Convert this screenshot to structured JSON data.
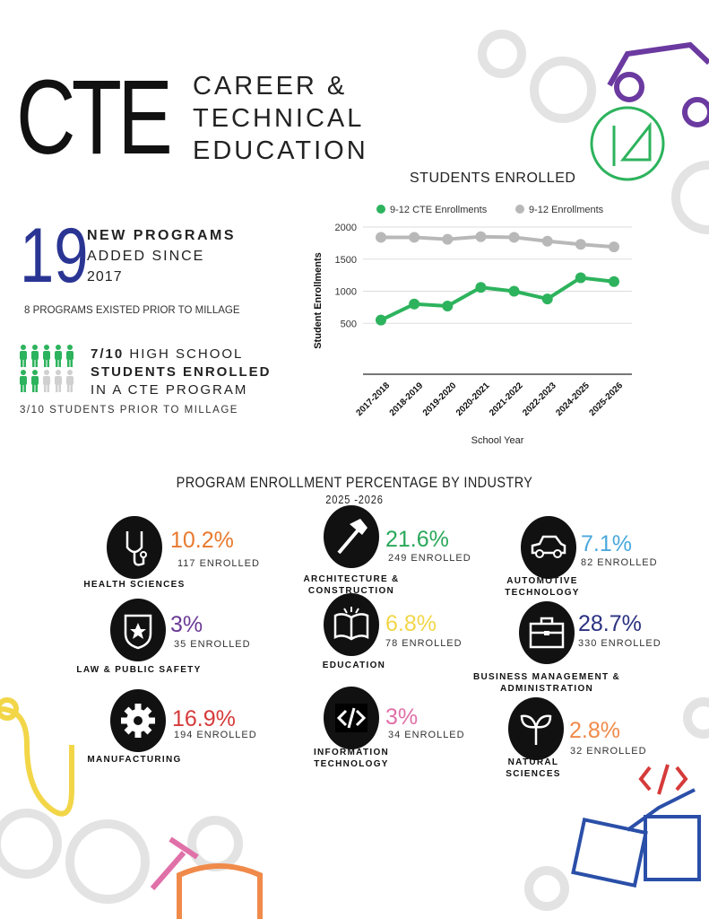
{
  "header": {
    "logo": "CTE",
    "line1": "CAREER &",
    "line2": "TECHNICAL",
    "line3": "EDUCATION"
  },
  "stats": {
    "programs_number": "19",
    "programs_line1": "NEW PROGRAMS",
    "programs_line2": "ADDED SINCE",
    "programs_line3": "2017",
    "programs_note": "8 PROGRAMS EXISTED PRIOR TO MILLAGE",
    "students_line1_bold": "7/10",
    "students_line1": "HIGH SCHOOL",
    "students_line2": "STUDENTS ENROLLED",
    "students_line3": "IN A CTE PROGRAM",
    "students_note": "3/10 STUDENTS PRIOR TO MILLAGE",
    "students_fraction": 0.7
  },
  "chart_data": {
    "type": "line",
    "title": "STUDENTS ENROLLED",
    "xlabel": "School Year",
    "ylabel": "Student Enrollments",
    "categories": [
      "2017-2018",
      "2018-2019",
      "2019-2020",
      "2020-2021",
      "2021-2022",
      "2022-2023",
      "2024-2025",
      "2025-2026"
    ],
    "yticks": [
      500,
      1000,
      1500,
      2000
    ],
    "ylim": [
      0,
      2000
    ],
    "grid": true,
    "legend": "top",
    "series": [
      {
        "name": "9-12 CTE Enrollments",
        "color": "#2db35d",
        "values": [
          550,
          800,
          770,
          1060,
          1000,
          880,
          1210,
          1150
        ]
      },
      {
        "name": "9-12 Enrollments",
        "color": "#b8b8b8",
        "values": [
          1840,
          1840,
          1810,
          1850,
          1840,
          1780,
          1730,
          1690
        ]
      }
    ]
  },
  "industry": {
    "title": "PROGRAM ENROLLMENT PERCENTAGE BY INDUSTRY",
    "year": "2025 -2026",
    "items": [
      {
        "label1": "HEALTH SCIENCES",
        "label2": "",
        "pct": "10.2%",
        "enrolled": "117 ENROLLED",
        "color": "#e87a2e",
        "icon": "stethoscope-icon"
      },
      {
        "label1": "ARCHITECTURE &",
        "label2": "CONSTRUCTION",
        "pct": "21.6%",
        "enrolled": "249 ENROLLED",
        "color": "#2aa85a",
        "icon": "hammer-icon"
      },
      {
        "label1": "AUTOMOTIVE",
        "label2": "TECHNOLOGY",
        "pct": "7.1%",
        "enrolled": "82 ENROLLED",
        "color": "#4aa8dc",
        "icon": "car-icon"
      },
      {
        "label1": "LAW & PUBLIC SAFETY",
        "label2": "",
        "pct": "3%",
        "enrolled": "35 ENROLLED",
        "color": "#6b3a96",
        "icon": "badge-icon"
      },
      {
        "label1": "EDUCATION",
        "label2": "",
        "pct": "6.8%",
        "enrolled": "78 ENROLLED",
        "color": "#f2d648",
        "icon": "book-icon"
      },
      {
        "label1": "BUSINESS MANAGEMENT &",
        "label2": "ADMINISTRATION",
        "pct": "28.7%",
        "enrolled": "330 ENROLLED",
        "color": "#2a3180",
        "icon": "briefcase-icon"
      },
      {
        "label1": "MANUFACTURING",
        "label2": "",
        "pct": "16.9%",
        "enrolled": "194 ENROLLED",
        "color": "#d63a3a",
        "icon": "gear-icon"
      },
      {
        "label1": "INFORMATION",
        "label2": "TECHNOLOGY",
        "pct": "3%",
        "enrolled": "34 ENROLLED",
        "color": "#e070a8",
        "icon": "code-icon"
      },
      {
        "label1": "NATURAL",
        "label2": "SCIENCES",
        "pct": "2.8%",
        "enrolled": "32 ENROLLED",
        "color": "#f08a4a",
        "icon": "sprout-icon"
      }
    ]
  }
}
